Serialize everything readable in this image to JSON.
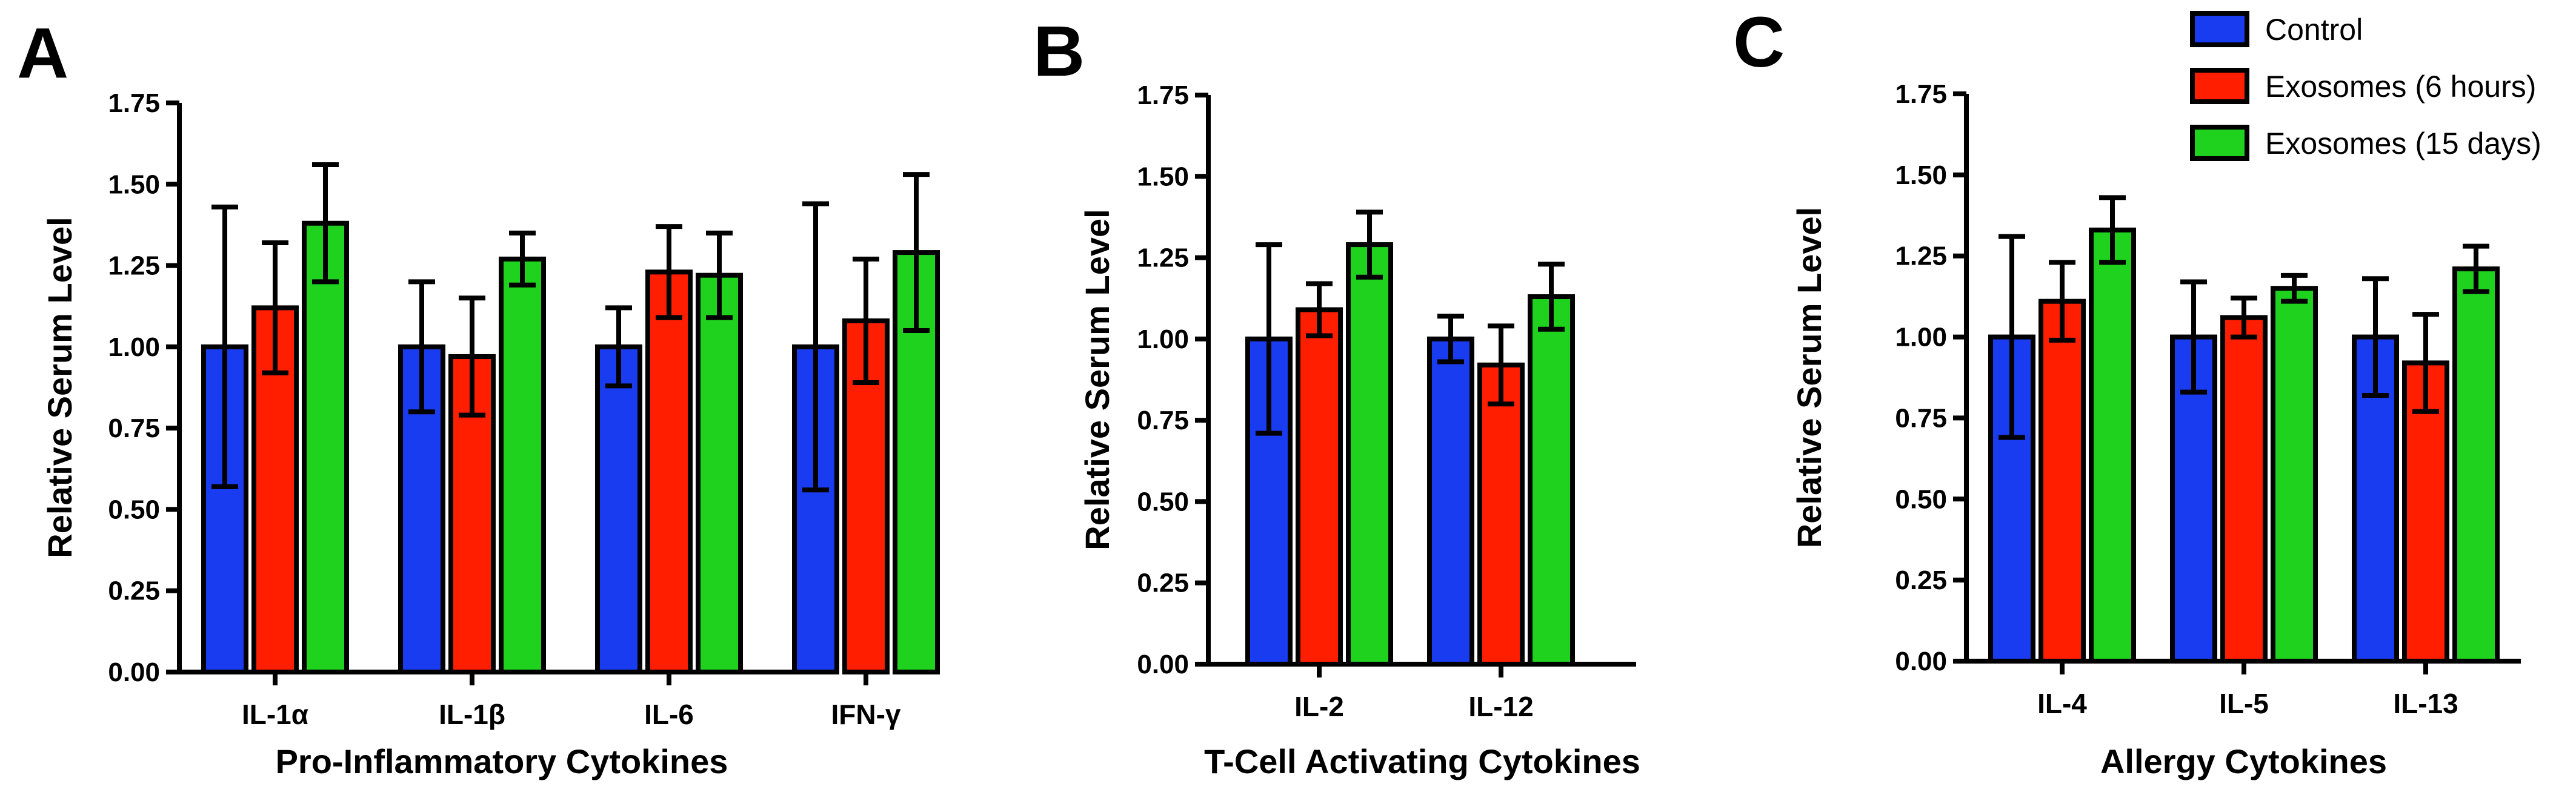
{
  "figure": {
    "series_names": [
      "Control",
      "Exosomes (6 hours)",
      "Exosomes (15 days)"
    ],
    "series_colors": [
      "#1a3cf0",
      "#ff1e00",
      "#1ed21e"
    ]
  },
  "chart_data": [
    {
      "panel": "A",
      "type": "bar",
      "title": "",
      "xlabel": "Pro-Inflammatory Cytokines",
      "ylabel": "Relative Serum Level",
      "ylim": [
        0,
        1.75
      ],
      "yticks": [
        "0.00",
        "0.25",
        "0.50",
        "0.75",
        "1.00",
        "1.25",
        "1.50",
        "1.75"
      ],
      "categories": [
        "IL-1α",
        "IL-1β",
        "IL-6",
        "IFN-γ"
      ],
      "series": [
        {
          "name": "Control",
          "values": [
            1.0,
            1.0,
            1.0,
            1.0
          ],
          "err": [
            0.43,
            0.2,
            0.12,
            0.44
          ]
        },
        {
          "name": "Exosomes (6 hours)",
          "values": [
            1.12,
            0.97,
            1.23,
            1.08
          ],
          "err": [
            0.2,
            0.18,
            0.14,
            0.19
          ]
        },
        {
          "name": "Exosomes (15 days)",
          "values": [
            1.38,
            1.27,
            1.22,
            1.29
          ],
          "err": [
            0.18,
            0.08,
            0.13,
            0.24
          ]
        }
      ]
    },
    {
      "panel": "B",
      "type": "bar",
      "title": "",
      "xlabel": "T-Cell Activating Cytokines",
      "ylabel": "Relative Serum Level",
      "ylim": [
        0,
        1.75
      ],
      "yticks": [
        "0.00",
        "0.25",
        "0.50",
        "0.75",
        "1.00",
        "1.25",
        "1.50",
        "1.75"
      ],
      "categories": [
        "IL-2",
        "IL-12"
      ],
      "series": [
        {
          "name": "Control",
          "values": [
            1.0,
            1.0
          ],
          "err": [
            0.29,
            0.07
          ]
        },
        {
          "name": "Exosomes (6 hours)",
          "values": [
            1.09,
            0.92
          ],
          "err": [
            0.08,
            0.12
          ]
        },
        {
          "name": "Exosomes (15 days)",
          "values": [
            1.29,
            1.13
          ],
          "err": [
            0.1,
            0.1
          ]
        }
      ]
    },
    {
      "panel": "C",
      "type": "bar",
      "title": "",
      "xlabel": "Allergy Cytokines",
      "ylabel": "Relative Serum Level",
      "ylim": [
        0,
        1.75
      ],
      "yticks": [
        "0.00",
        "0.25",
        "0.50",
        "0.75",
        "1.00",
        "1.25",
        "1.50",
        "1.75"
      ],
      "categories": [
        "IL-4",
        "IL-5",
        "IL-13"
      ],
      "series": [
        {
          "name": "Control",
          "values": [
            1.0,
            1.0,
            1.0
          ],
          "err": [
            0.31,
            0.17,
            0.18
          ]
        },
        {
          "name": "Exosomes (6 hours)",
          "values": [
            1.11,
            1.06,
            0.92
          ],
          "err": [
            0.12,
            0.06,
            0.15
          ]
        },
        {
          "name": "Exosomes (15 days)",
          "values": [
            1.33,
            1.15,
            1.21
          ],
          "err": [
            0.1,
            0.04,
            0.07
          ]
        }
      ]
    }
  ]
}
